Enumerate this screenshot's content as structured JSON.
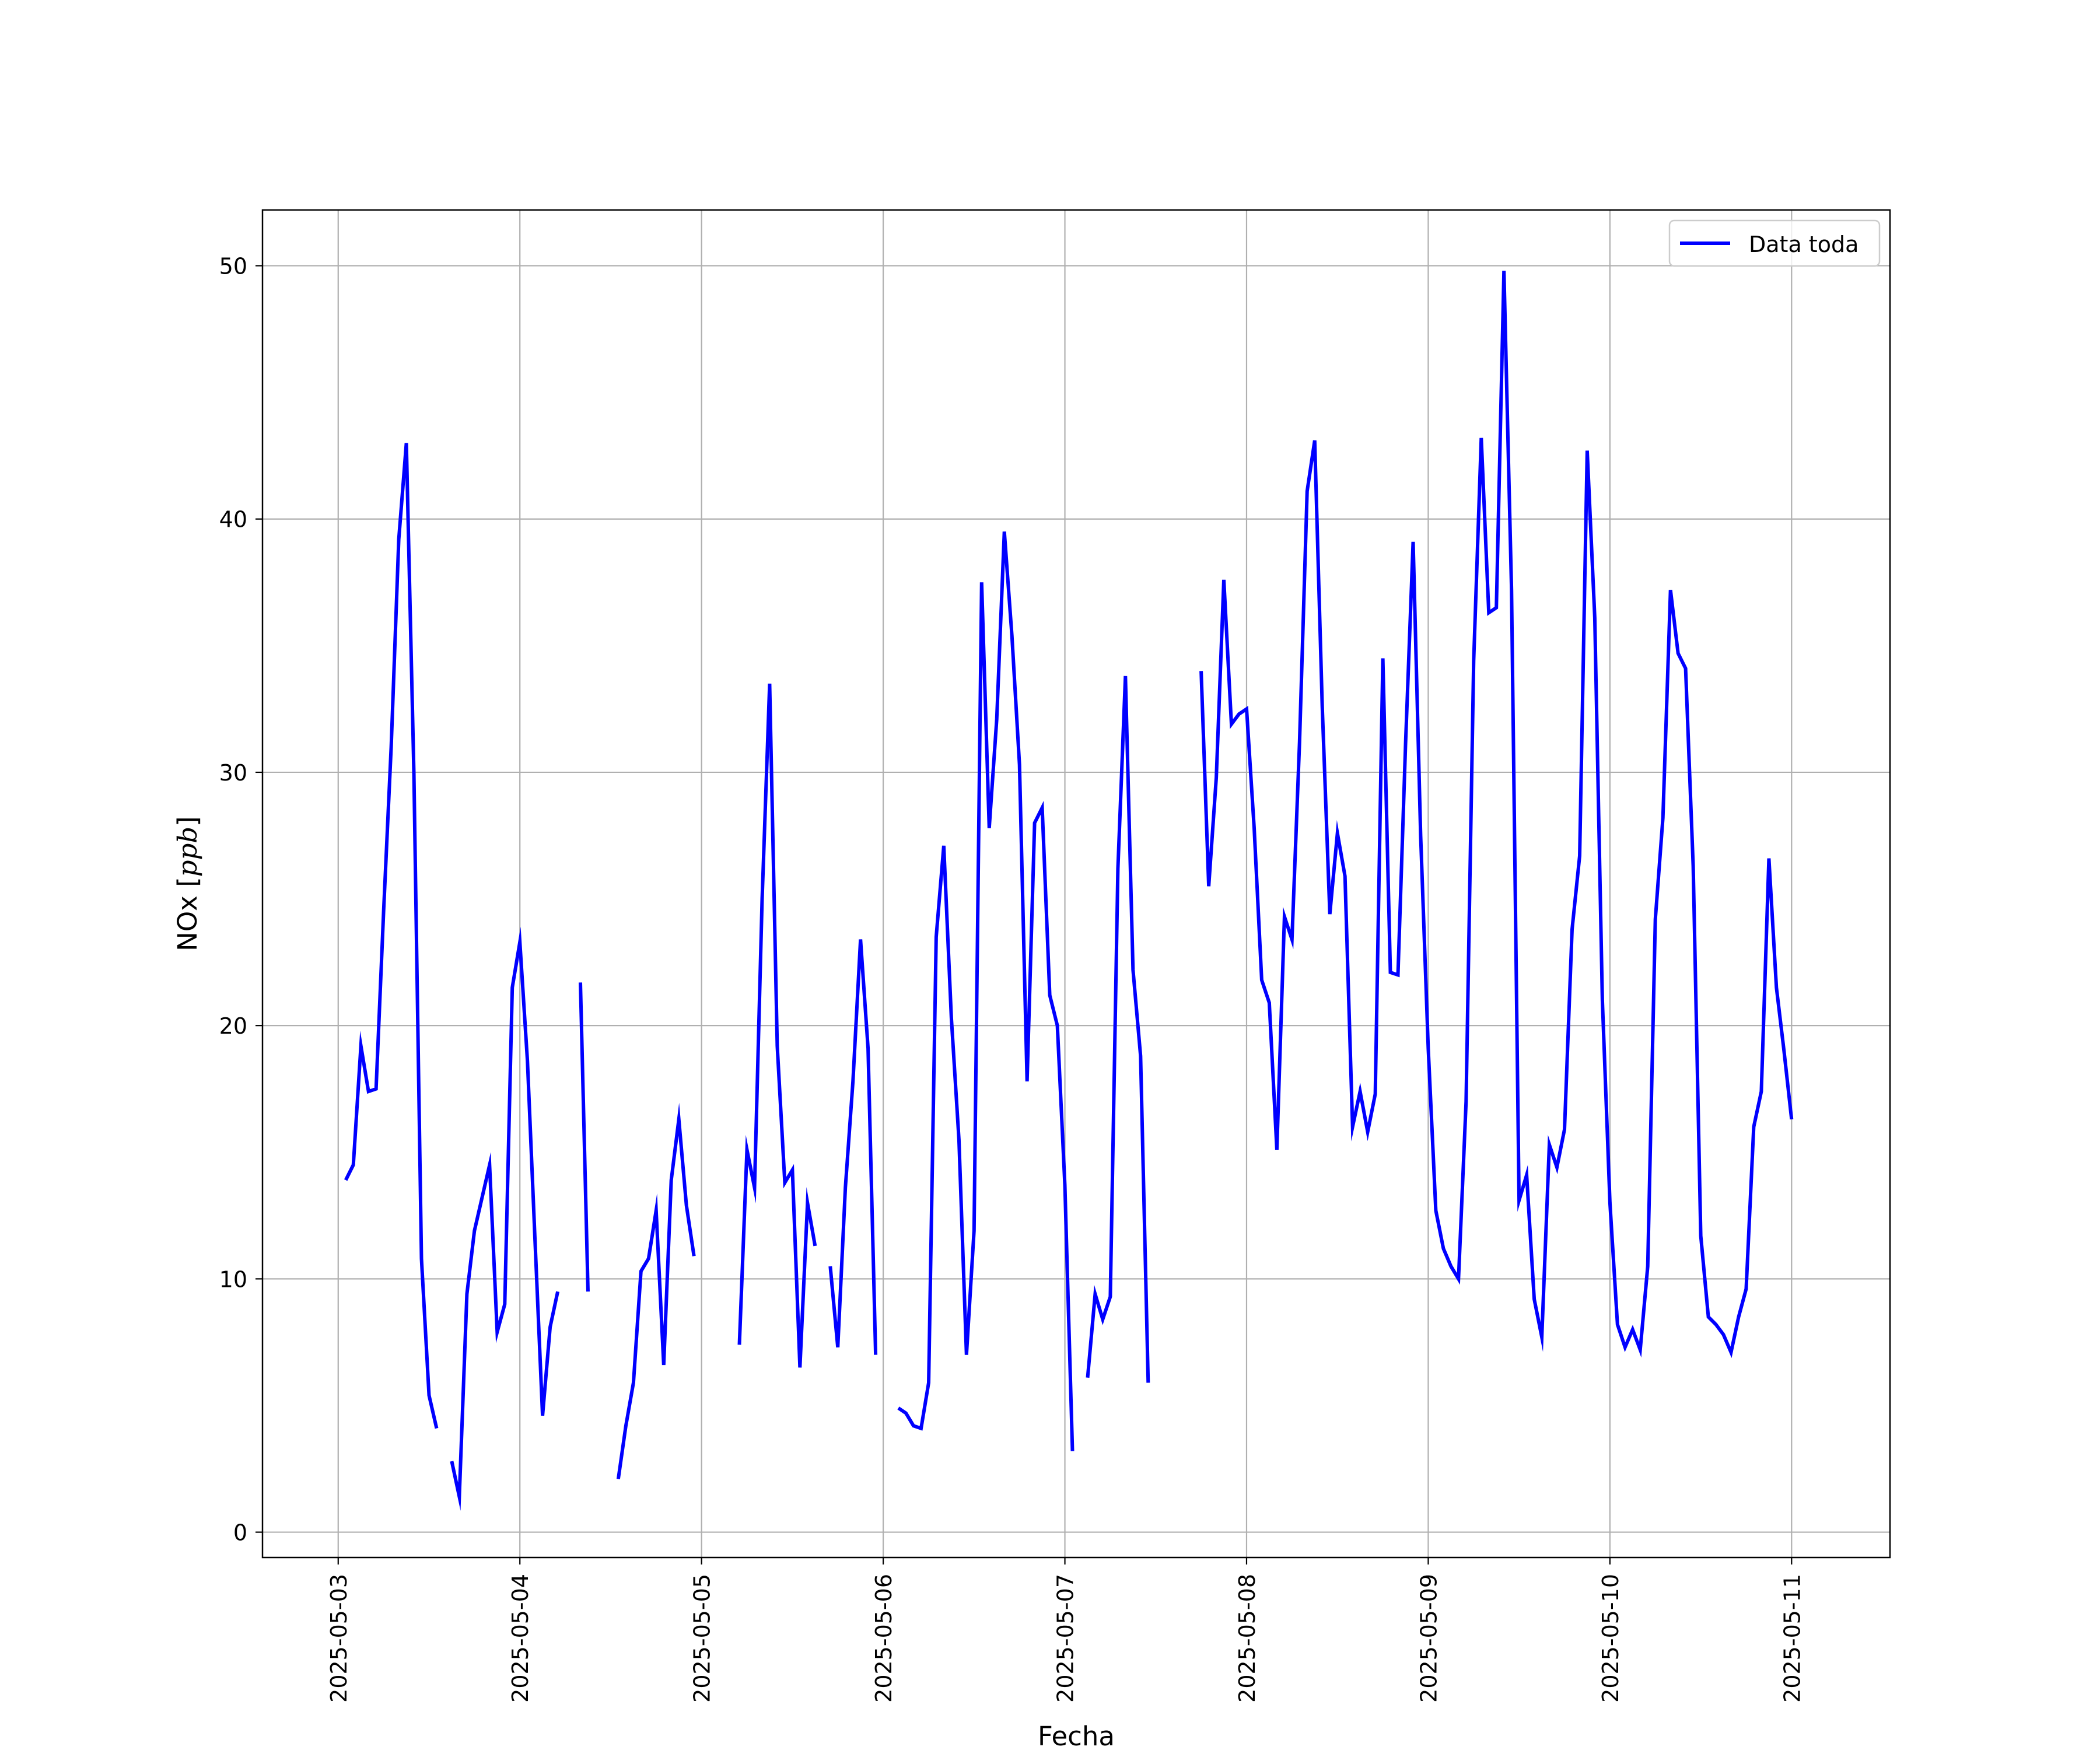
{
  "chart_data": {
    "type": "line",
    "title": "",
    "xlabel": "Fecha",
    "ylabel": "NOx [ppb]",
    "ylabel_parts": {
      "main": "NOx [",
      "unit": "ppb",
      "close": "]"
    },
    "xlim": [
      "2025-05-02T14:00",
      "2025-05-11T13:00"
    ],
    "ylim": [
      -1,
      52.2
    ],
    "x_ticks": [
      "2025-05-03",
      "2025-05-04",
      "2025-05-05",
      "2025-05-06",
      "2025-05-07",
      "2025-05-08",
      "2025-05-09",
      "2025-05-10",
      "2025-05-11"
    ],
    "y_ticks": [
      0,
      10,
      20,
      30,
      40,
      50
    ],
    "grid": true,
    "legend": {
      "position": "upper right",
      "entries": [
        "Data toda"
      ]
    },
    "series": [
      {
        "name": "Data toda",
        "color": "#0000ff",
        "points": [
          [
            "2025-05-03T01:00",
            13.9
          ],
          [
            "2025-05-03T02:00",
            14.5
          ],
          [
            "2025-05-03T03:00",
            19.2
          ],
          [
            "2025-05-03T04:00",
            17.4
          ],
          [
            "2025-05-03T05:00",
            17.5
          ],
          [
            "2025-05-03T06:00",
            24.5
          ],
          [
            "2025-05-03T07:00",
            31.0
          ],
          [
            "2025-05-03T08:00",
            39.2
          ],
          [
            "2025-05-03T09:00",
            43.0
          ],
          [
            "2025-05-03T10:00",
            30.0
          ],
          [
            "2025-05-03T11:00",
            10.8
          ],
          [
            "2025-05-03T12:00",
            5.4
          ],
          [
            "2025-05-03T13:00",
            4.1
          ],
          [
            "2025-05-03T14:00",
            null
          ],
          [
            "2025-05-03T15:00",
            2.8
          ],
          [
            "2025-05-03T16:00",
            1.4
          ],
          [
            "2025-05-03T17:00",
            9.4
          ],
          [
            "2025-05-03T18:00",
            11.9
          ],
          [
            "2025-05-03T19:00",
            13.2
          ],
          [
            "2025-05-03T20:00",
            14.5
          ],
          [
            "2025-05-03T21:00",
            7.9
          ],
          [
            "2025-05-03T22:00",
            9.0
          ],
          [
            "2025-05-03T23:00",
            21.5
          ],
          [
            "2025-05-04T00:00",
            23.3
          ],
          [
            "2025-05-04T01:00",
            18.6
          ],
          [
            "2025-05-04T02:00",
            11.5
          ],
          [
            "2025-05-04T03:00",
            4.6
          ],
          [
            "2025-05-04T04:00",
            8.1
          ],
          [
            "2025-05-04T05:00",
            9.5
          ],
          [
            "2025-05-04T06:00",
            null
          ],
          [
            "2025-05-04T08:00",
            21.7
          ],
          [
            "2025-05-04T09:00",
            9.5
          ],
          [
            "2025-05-04T10:00",
            null
          ],
          [
            "2025-05-04T13:00",
            2.1
          ],
          [
            "2025-05-04T14:00",
            4.2
          ],
          [
            "2025-05-04T15:00",
            5.9
          ],
          [
            "2025-05-04T16:00",
            10.3
          ],
          [
            "2025-05-04T17:00",
            10.8
          ],
          [
            "2025-05-04T18:00",
            12.7
          ],
          [
            "2025-05-04T19:00",
            6.6
          ],
          [
            "2025-05-04T20:00",
            13.9
          ],
          [
            "2025-05-04T21:00",
            16.3
          ],
          [
            "2025-05-04T22:00",
            12.9
          ],
          [
            "2025-05-04T23:00",
            10.9
          ],
          [
            "2025-05-05T00:00",
            null
          ],
          [
            "2025-05-05T05:00",
            7.4
          ],
          [
            "2025-05-05T06:00",
            15.1
          ],
          [
            "2025-05-05T07:00",
            13.6
          ],
          [
            "2025-05-05T08:00",
            25.0
          ],
          [
            "2025-05-05T09:00",
            33.5
          ],
          [
            "2025-05-05T10:00",
            19.2
          ],
          [
            "2025-05-05T11:00",
            13.8
          ],
          [
            "2025-05-05T12:00",
            14.3
          ],
          [
            "2025-05-05T13:00",
            6.5
          ],
          [
            "2025-05-05T14:00",
            13.0
          ],
          [
            "2025-05-05T15:00",
            11.3
          ],
          [
            "2025-05-05T16:00",
            null
          ],
          [
            "2025-05-05T17:00",
            10.5
          ],
          [
            "2025-05-05T18:00",
            7.3
          ],
          [
            "2025-05-05T19:00",
            13.6
          ],
          [
            "2025-05-05T20:00",
            17.8
          ],
          [
            "2025-05-05T21:00",
            23.4
          ],
          [
            "2025-05-05T22:00",
            19.1
          ],
          [
            "2025-05-05T23:00",
            7.0
          ],
          [
            "2025-05-06T00:00",
            null
          ],
          [
            "2025-05-06T02:00",
            4.9
          ],
          [
            "2025-05-06T03:00",
            4.7
          ],
          [
            "2025-05-06T04:00",
            4.2
          ],
          [
            "2025-05-06T05:00",
            4.1
          ],
          [
            "2025-05-06T06:00",
            5.9
          ],
          [
            "2025-05-06T07:00",
            23.5
          ],
          [
            "2025-05-06T08:00",
            27.1
          ],
          [
            "2025-05-06T09:00",
            20.3
          ],
          [
            "2025-05-06T10:00",
            15.5
          ],
          [
            "2025-05-06T11:00",
            7.0
          ],
          [
            "2025-05-06T12:00",
            11.9
          ],
          [
            "2025-05-06T13:00",
            37.5
          ],
          [
            "2025-05-06T14:00",
            27.8
          ],
          [
            "2025-05-06T15:00",
            32.1
          ],
          [
            "2025-05-06T16:00",
            39.5
          ],
          [
            "2025-05-06T17:00",
            35.4
          ],
          [
            "2025-05-06T18:00",
            30.3
          ],
          [
            "2025-05-06T19:00",
            17.8
          ],
          [
            "2025-05-06T20:00",
            28.0
          ],
          [
            "2025-05-06T21:00",
            28.6
          ],
          [
            "2025-05-06T22:00",
            21.2
          ],
          [
            "2025-05-06T23:00",
            20.0
          ],
          [
            "2025-05-07T00:00",
            13.7
          ],
          [
            "2025-05-07T01:00",
            3.2
          ],
          [
            "2025-05-07T02:00",
            null
          ],
          [
            "2025-05-07T03:00",
            6.1
          ],
          [
            "2025-05-07T04:00",
            9.4
          ],
          [
            "2025-05-07T05:00",
            8.4
          ],
          [
            "2025-05-07T06:00",
            9.3
          ],
          [
            "2025-05-07T07:00",
            26.2
          ],
          [
            "2025-05-07T08:00",
            33.8
          ],
          [
            "2025-05-07T09:00",
            22.2
          ],
          [
            "2025-05-07T10:00",
            18.8
          ],
          [
            "2025-05-07T11:00",
            5.9
          ],
          [
            "2025-05-07T12:00",
            null
          ],
          [
            "2025-05-07T18:00",
            34.0
          ],
          [
            "2025-05-07T19:00",
            25.5
          ],
          [
            "2025-05-07T20:00",
            29.8
          ],
          [
            "2025-05-07T21:00",
            37.6
          ],
          [
            "2025-05-07T22:00",
            31.9
          ],
          [
            "2025-05-07T23:00",
            32.3
          ],
          [
            "2025-05-08T00:00",
            32.5
          ],
          [
            "2025-05-08T01:00",
            27.8
          ],
          [
            "2025-05-08T02:00",
            21.8
          ],
          [
            "2025-05-08T03:00",
            20.9
          ],
          [
            "2025-05-08T04:00",
            15.1
          ],
          [
            "2025-05-08T05:00",
            24.3
          ],
          [
            "2025-05-08T06:00",
            23.4
          ],
          [
            "2025-05-08T07:00",
            31.2
          ],
          [
            "2025-05-08T08:00",
            41.1
          ],
          [
            "2025-05-08T09:00",
            43.1
          ],
          [
            "2025-05-08T10:00",
            32.6
          ],
          [
            "2025-05-08T11:00",
            24.4
          ],
          [
            "2025-05-08T12:00",
            27.6
          ],
          [
            "2025-05-08T13:00",
            25.9
          ],
          [
            "2025-05-08T14:00",
            16.0
          ],
          [
            "2025-05-08T15:00",
            17.4
          ],
          [
            "2025-05-08T16:00",
            15.8
          ],
          [
            "2025-05-08T17:00",
            17.3
          ],
          [
            "2025-05-08T18:00",
            34.5
          ],
          [
            "2025-05-08T19:00",
            22.1
          ],
          [
            "2025-05-08T20:00",
            22.0
          ],
          [
            "2025-05-08T21:00",
            31.1
          ],
          [
            "2025-05-08T22:00",
            39.1
          ],
          [
            "2025-05-08T23:00",
            27.5
          ],
          [
            "2025-05-09T00:00",
            19.1
          ],
          [
            "2025-05-09T01:00",
            12.7
          ],
          [
            "2025-05-09T02:00",
            11.2
          ],
          [
            "2025-05-09T03:00",
            10.5
          ],
          [
            "2025-05-09T04:00",
            10.0
          ],
          [
            "2025-05-09T05:00",
            17.0
          ],
          [
            "2025-05-09T06:00",
            34.4
          ],
          [
            "2025-05-09T07:00",
            43.2
          ],
          [
            "2025-05-09T08:00",
            36.3
          ],
          [
            "2025-05-09T09:00",
            36.5
          ],
          [
            "2025-05-09T10:00",
            49.8
          ],
          [
            "2025-05-09T11:00",
            37.2
          ],
          [
            "2025-05-09T12:00",
            13.1
          ],
          [
            "2025-05-09T13:00",
            14.1
          ],
          [
            "2025-05-09T14:00",
            9.2
          ],
          [
            "2025-05-09T15:00",
            7.7
          ],
          [
            "2025-05-09T16:00",
            15.3
          ],
          [
            "2025-05-09T17:00",
            14.4
          ],
          [
            "2025-05-09T18:00",
            15.9
          ],
          [
            "2025-05-09T19:00",
            23.8
          ],
          [
            "2025-05-09T20:00",
            26.7
          ],
          [
            "2025-05-09T21:00",
            42.7
          ],
          [
            "2025-05-09T22:00",
            36.1
          ],
          [
            "2025-05-09T23:00",
            21.0
          ],
          [
            "2025-05-10T00:00",
            13.0
          ],
          [
            "2025-05-10T01:00",
            8.2
          ],
          [
            "2025-05-10T02:00",
            7.3
          ],
          [
            "2025-05-10T03:00",
            8.0
          ],
          [
            "2025-05-10T04:00",
            7.2
          ],
          [
            "2025-05-10T05:00",
            10.5
          ],
          [
            "2025-05-10T06:00",
            24.2
          ],
          [
            "2025-05-10T07:00",
            28.2
          ],
          [
            "2025-05-10T08:00",
            37.2
          ],
          [
            "2025-05-10T09:00",
            34.7
          ],
          [
            "2025-05-10T10:00",
            34.1
          ],
          [
            "2025-05-10T11:00",
            26.3
          ],
          [
            "2025-05-10T12:00",
            11.7
          ],
          [
            "2025-05-10T13:00",
            8.5
          ],
          [
            "2025-05-10T14:00",
            8.2
          ],
          [
            "2025-05-10T15:00",
            7.8
          ],
          [
            "2025-05-10T16:00",
            7.1
          ],
          [
            "2025-05-10T17:00",
            8.5
          ],
          [
            "2025-05-10T18:00",
            9.6
          ],
          [
            "2025-05-10T19:00",
            16.0
          ],
          [
            "2025-05-10T20:00",
            17.4
          ],
          [
            "2025-05-10T21:00",
            26.6
          ],
          [
            "2025-05-10T22:00",
            21.5
          ],
          [
            "2025-05-10T23:00",
            19.0
          ],
          [
            "2025-05-11T00:00",
            16.3
          ]
        ]
      }
    ]
  }
}
